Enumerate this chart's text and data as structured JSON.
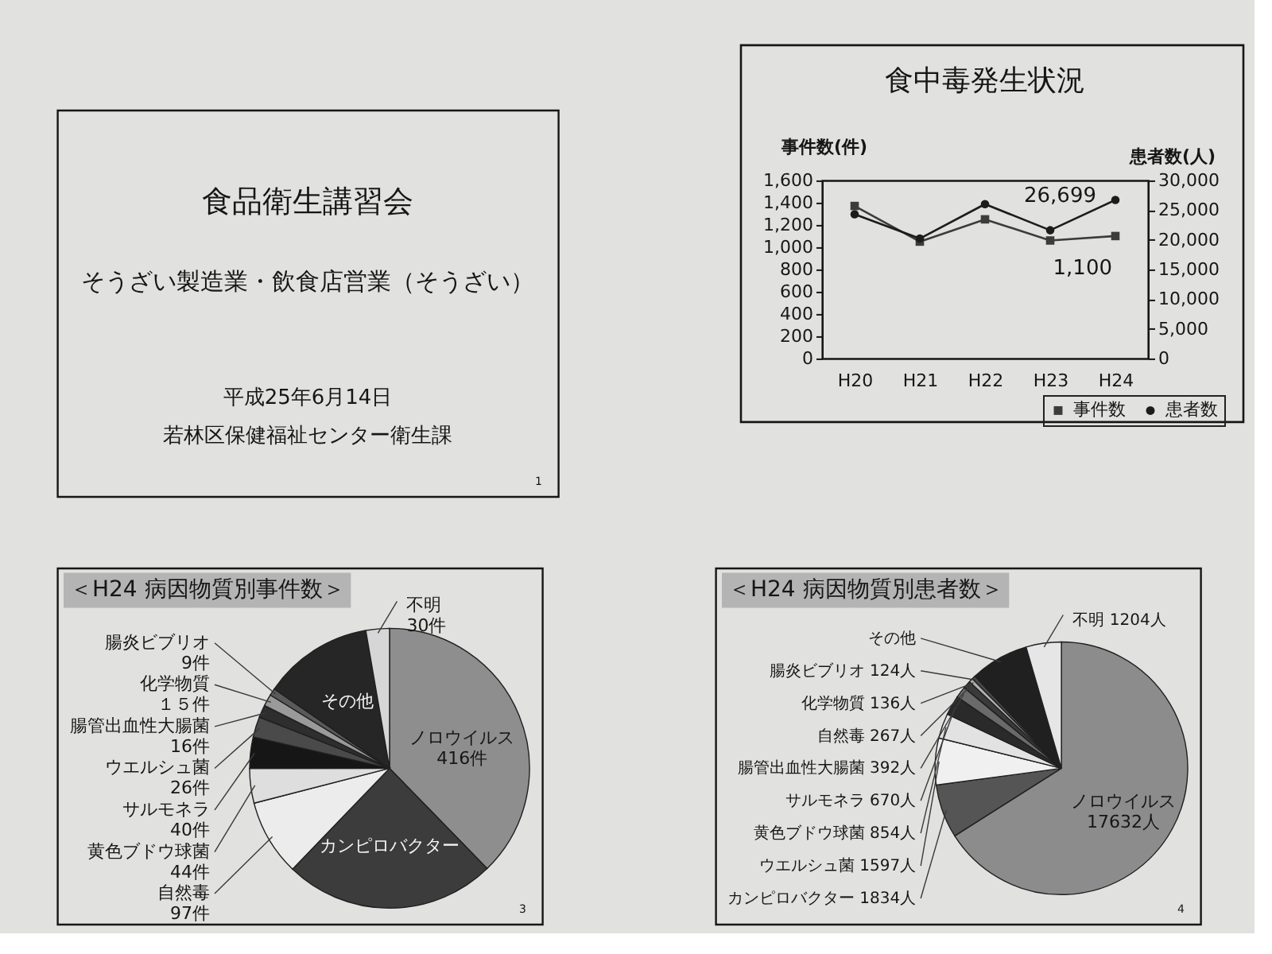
{
  "chart_data": [
    {
      "type": "other",
      "title": "食品衛生講習会",
      "subtitle": "そうざい製造業・飲食店営業（そうざい）",
      "annotations": [
        "平成25年6月14日",
        "若林区保健福祉センター衛生課",
        "1"
      ]
    },
    {
      "type": "line",
      "title": "食中毒発生状況",
      "ylabel": "事件数(件)",
      "y2label": "患者数(人)",
      "categories": [
        "H20",
        "H21",
        "H22",
        "H23",
        "H24"
      ],
      "series": [
        {
          "name": "事件数",
          "color": "#3c3c3c",
          "marker": "square",
          "values": [
            1370,
            1050,
            1250,
            1060,
            1100
          ],
          "value_labels": [
            null,
            null,
            null,
            null,
            "1,100"
          ]
        },
        {
          "name": "患者数",
          "color": "#1c1c1c",
          "marker": "circle",
          "axis": "y2",
          "values": [
            24300,
            20200,
            26000,
            21600,
            26699
          ],
          "value_labels": [
            null,
            null,
            null,
            null,
            "26,699"
          ]
        }
      ],
      "ylim": [
        0,
        1600
      ],
      "yticks": [
        0,
        200,
        400,
        600,
        800,
        {
          "value": 1000,
          "label": "1,000"
        },
        {
          "value": 1200,
          "label": "1,200"
        },
        {
          "value": 1400,
          "label": "1,400"
        },
        {
          "value": 1600,
          "label": "1,600"
        }
      ],
      "y2lim": [
        0,
        30000
      ],
      "y2ticks": [
        0,
        {
          "value": 5000,
          "label": "5,000"
        },
        {
          "value": 10000,
          "label": "10,000"
        },
        {
          "value": 15000,
          "label": "15,000"
        },
        {
          "value": 20000,
          "label": "20,000"
        },
        {
          "value": 25000,
          "label": "25,000"
        },
        {
          "value": 30000,
          "label": "30,000"
        }
      ],
      "legend": "bottom right"
    },
    {
      "type": "pie",
      "title": "＜H24 病因物質別事件数＞",
      "categories": [
        "ノロウイルス",
        "カンピロバクター",
        "自然毒",
        "黄色ブドウ球菌",
        "サルモネラ",
        "ウエルシュ菌",
        "腸管出血性大腸菌",
        "化学物質",
        "腸炎ビブリオ",
        "その他",
        "不明"
      ],
      "values": [
        416,
        270,
        97,
        44,
        40,
        26,
        16,
        15,
        9,
        140,
        30
      ],
      "value_labels": [
        "416件",
        null,
        "97件",
        "44件",
        "40件",
        "26件",
        "16件",
        "１５件",
        "9件",
        null,
        "30件"
      ],
      "colors": [
        "#8e8e8e",
        "#3c3c3c",
        "#ececec",
        "#dedede",
        "#161616",
        "#4a4a4a",
        "#2e2e2e",
        "#9a9a9a",
        "#5a5a5a",
        "#262626",
        "#d6d6d6"
      ],
      "annotations": [
        "3"
      ]
    },
    {
      "type": "pie",
      "title": "＜H24 病因物質別患者数＞",
      "categories": [
        "ノロウイルス",
        "カンピロバクター",
        "ウエルシュ菌",
        "黄色ブドウ球菌",
        "サルモネラ",
        "腸管出血性大腸菌",
        "自然毒",
        "化学物質",
        "腸炎ビブリオ",
        "その他",
        "不明"
      ],
      "values": [
        17632,
        1834,
        1597,
        854,
        670,
        392,
        267,
        136,
        124,
        2000,
        1204
      ],
      "value_labels": [
        "17632人",
        "1834人",
        "1597人",
        "854人",
        "670人",
        "392人",
        "267人",
        "136人",
        "124人",
        null,
        "1204人"
      ],
      "colors": [
        "#8c8c8c",
        "#555555",
        "#f0f0f0",
        "#e2e2e2",
        "#2a2a2a",
        "#6a6a6a",
        "#3a3a3a",
        "#b0b0b0",
        "#4a4a4a",
        "#202020",
        "#e6e6e6"
      ],
      "annotations": [
        "4"
      ]
    }
  ]
}
